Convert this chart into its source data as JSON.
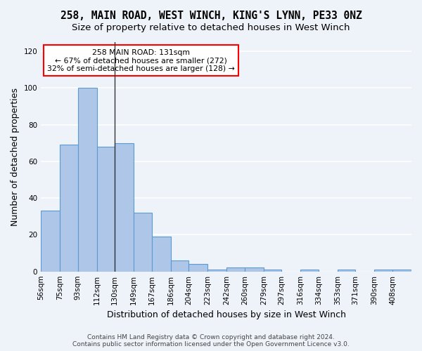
{
  "title_line1": "258, MAIN ROAD, WEST WINCH, KING'S LYNN, PE33 0NZ",
  "title_line2": "Size of property relative to detached houses in West Winch",
  "xlabel": "Distribution of detached houses by size in West Winch",
  "ylabel": "Number of detached properties",
  "bar_color": "#aec6e8",
  "bar_edge_color": "#5b9bd5",
  "annotation_text": "258 MAIN ROAD: 131sqm\n← 67% of detached houses are smaller (272)\n32% of semi-detached houses are larger (128) →",
  "annotation_box_color": "white",
  "annotation_box_edge_color": "red",
  "vline_x": 130,
  "vline_color": "#333333",
  "footer_line1": "Contains HM Land Registry data © Crown copyright and database right 2024.",
  "footer_line2": "Contains public sector information licensed under the Open Government Licence v3.0.",
  "bin_edges": [
    56,
    75,
    93,
    112,
    130,
    149,
    167,
    186,
    204,
    223,
    242,
    260,
    279,
    297,
    316,
    334,
    353,
    371,
    390,
    408,
    427
  ],
  "bar_heights": [
    33,
    69,
    100,
    68,
    70,
    32,
    19,
    6,
    4,
    1,
    2,
    2,
    1,
    0,
    1,
    0,
    1,
    0,
    1,
    1
  ],
  "ylim": [
    0,
    125
  ],
  "yticks": [
    0,
    20,
    40,
    60,
    80,
    100,
    120
  ],
  "background_color": "#eef2f9",
  "grid_color": "#ffffff",
  "title_fontsize": 10.5,
  "subtitle_fontsize": 9.5,
  "tick_fontsize": 7.5,
  "ylabel_fontsize": 9,
  "xlabel_fontsize": 9
}
